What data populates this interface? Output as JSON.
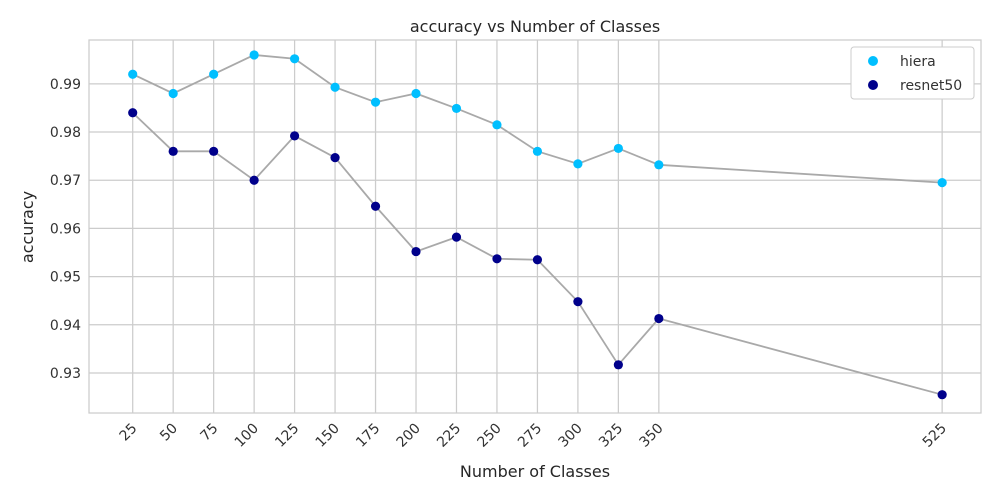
{
  "chart_data": {
    "type": "scatter",
    "title": "accuracy vs Number of Classes",
    "xlabel": "Number of Classes",
    "ylabel": "accuracy",
    "x_ticks": [
      25,
      50,
      75,
      100,
      125,
      150,
      175,
      200,
      225,
      250,
      275,
      300,
      325,
      350,
      525
    ],
    "x_tick_labels": [
      "25",
      "50",
      "75",
      "100",
      "125",
      "150",
      "175",
      "200",
      "225",
      "250",
      "275",
      "300",
      "325",
      "350",
      "525"
    ],
    "y_ticks": [
      0.93,
      0.94,
      0.95,
      0.96,
      0.97,
      0.98,
      0.99
    ],
    "y_tick_labels": [
      "0.93",
      "0.94",
      "0.95",
      "0.96",
      "0.97",
      "0.98",
      "0.99"
    ],
    "xlim": [
      -2,
      549
    ],
    "ylim": [
      0.9217,
      0.9991
    ],
    "grid": true,
    "legend_position": "top-right",
    "connector_color": "#a9a9a9",
    "series": [
      {
        "name": "hiera",
        "color": "#00bfff",
        "x": [
          25,
          50,
          75,
          100,
          125,
          150,
          175,
          200,
          225,
          250,
          275,
          300,
          325,
          350,
          525
        ],
        "y": [
          0.992,
          0.988,
          0.992,
          0.996,
          0.9952,
          0.9893,
          0.9862,
          0.988,
          0.9849,
          0.9815,
          0.976,
          0.9734,
          0.9766,
          0.9732,
          0.9695
        ]
      },
      {
        "name": "resnet50",
        "color": "#00008b",
        "x": [
          25,
          50,
          75,
          100,
          125,
          150,
          175,
          200,
          225,
          250,
          275,
          300,
          325,
          350,
          525
        ],
        "y": [
          0.984,
          0.976,
          0.976,
          0.97,
          0.9792,
          0.9747,
          0.9646,
          0.9552,
          0.9582,
          0.9537,
          0.9535,
          0.9448,
          0.9317,
          0.9413,
          0.9255
        ]
      }
    ]
  }
}
